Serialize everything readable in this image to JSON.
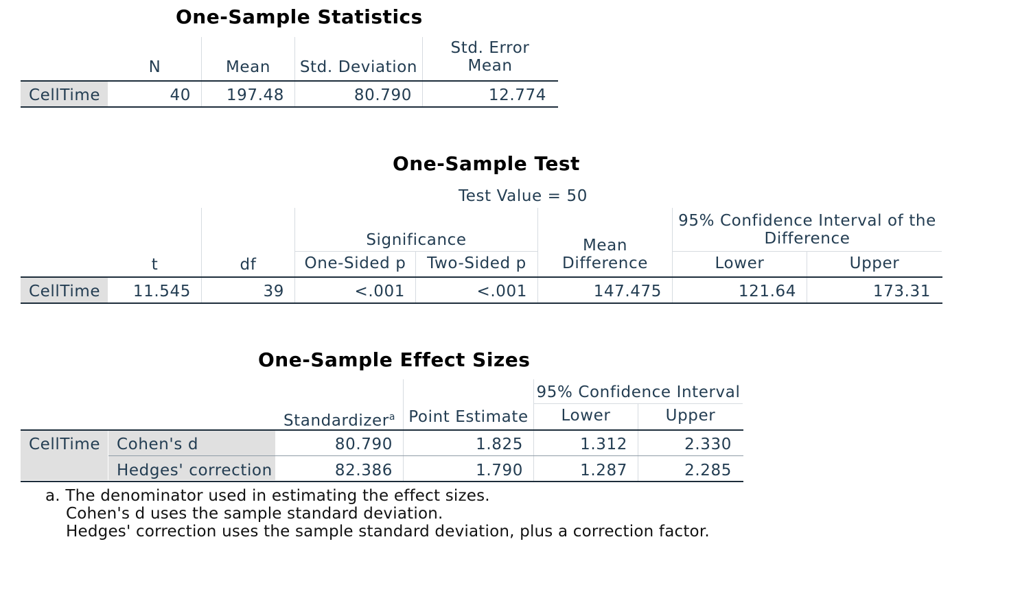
{
  "stats": {
    "title": "One-Sample Statistics",
    "headers": {
      "n": "N",
      "mean": "Mean",
      "sd": "Std. Deviation",
      "se1": "Std. Error",
      "se2": "Mean"
    },
    "row": {
      "label": "CellTime",
      "n": "40",
      "mean": "197.48",
      "sd": "80.790",
      "se": "12.774"
    }
  },
  "test": {
    "title": "One-Sample Test",
    "test_value": "Test Value = 50",
    "headers": {
      "t": "t",
      "df": "df",
      "significance": "Significance",
      "one_sided": "One-Sided p",
      "two_sided": "Two-Sided p",
      "mean_diff1": "Mean",
      "mean_diff2": "Difference",
      "ci1": "95% Confidence Interval of the",
      "ci2": "Difference",
      "lower": "Lower",
      "upper": "Upper"
    },
    "row": {
      "label": "CellTime",
      "t": "11.545",
      "df": "39",
      "one_sided": "<.001",
      "two_sided": "<.001",
      "mean_diff": "147.475",
      "lower": "121.64",
      "upper": "173.31"
    }
  },
  "effect": {
    "title": "One-Sample Effect Sizes",
    "headers": {
      "standardizer": "Standardizer",
      "sup": "a",
      "point": "Point Estimate",
      "ci": "95% Confidence Interval",
      "lower": "Lower",
      "upper": "Upper"
    },
    "group_label": "CellTime",
    "rows": [
      {
        "label": "Cohen's d",
        "standardizer": "80.790",
        "point": "1.825",
        "lower": "1.312",
        "upper": "2.330"
      },
      {
        "label": "Hedges' correction",
        "standardizer": "82.386",
        "point": "1.790",
        "lower": "1.287",
        "upper": "2.285"
      }
    ],
    "footnotes": [
      "a. The denominator used in estimating the effect sizes.",
      "Cohen's d uses the sample standard deviation.",
      "Hedges' correction uses the sample standard deviation, plus a correction factor."
    ]
  }
}
